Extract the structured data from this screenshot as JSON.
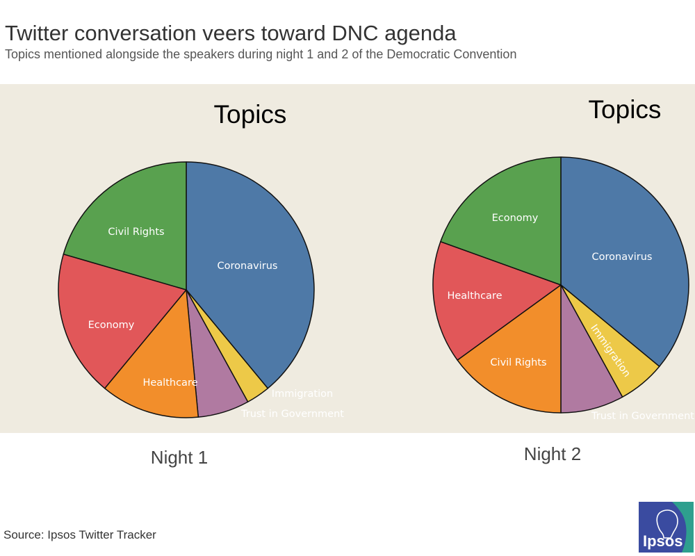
{
  "header": {
    "title": "Twitter conversation veers toward DNC agenda",
    "subtitle": "Topics mentioned alongside the speakers during night 1 and 2 of the Democratic Convention"
  },
  "footer": {
    "source": "Source: Ipsos Twitter Tracker"
  },
  "logo": {
    "text": "Ipsos",
    "colors": {
      "blue": "#3a4ba0",
      "green": "#2e9f8e",
      "text": "#ffffff"
    }
  },
  "chart_data": [
    {
      "type": "pie",
      "title": "Topics",
      "caption": "Night 1",
      "slices": [
        {
          "label": "Coronavirus",
          "value": 39.0,
          "color": "#4e79a7"
        },
        {
          "label": "Immigration",
          "value": 3.0,
          "color": "#edc948"
        },
        {
          "label": "Trust in Government",
          "value": 6.5,
          "color": "#b07aa1"
        },
        {
          "label": "Healthcare",
          "value": 12.5,
          "color": "#f28e2b"
        },
        {
          "label": "Economy",
          "value": 18.5,
          "color": "#e15759"
        },
        {
          "label": "Civil Rights",
          "value": 20.5,
          "color": "#59a14f"
        }
      ]
    },
    {
      "type": "pie",
      "title": "Topics",
      "caption": "Night 2",
      "slices": [
        {
          "label": "Coronavirus",
          "value": 36.0,
          "color": "#4e79a7"
        },
        {
          "label": "Immigration",
          "value": 6.0,
          "color": "#edc948"
        },
        {
          "label": "Trust in Government",
          "value": 8.0,
          "color": "#b07aa1"
        },
        {
          "label": "Civil Rights",
          "value": 15.0,
          "color": "#f28e2b"
        },
        {
          "label": "Healthcare",
          "value": 15.5,
          "color": "#e15759"
        },
        {
          "label": "Economy",
          "value": 19.5,
          "color": "#59a14f"
        }
      ]
    }
  ]
}
